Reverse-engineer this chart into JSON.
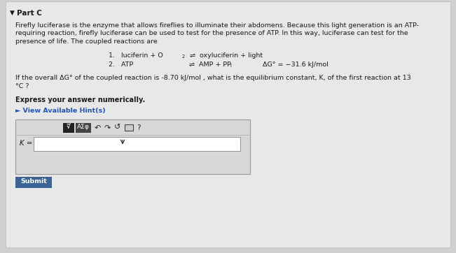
{
  "background_color": "#d0d0d0",
  "panel_color": "#e8e8e8",
  "part_label": "Part C",
  "body_text_line1": "Firefly luciferase is the enzyme that allows fireflies to illuminate their abdomens. Because this light generation is an ATP-",
  "body_text_line2": "requiring reaction, firefly luciferase can be used to test for the presence of ATP. In this way, luciferase can test for the",
  "body_text_line3": "presence of life. The coupled reactions are",
  "question_line1": "If the overall ΔG° of the coupled reaction is -8.70 kJ/mol , what is the equilibrium constant, K, of the first reaction at 13",
  "question_line2": "°C ?",
  "express_text": "Express your answer numerically.",
  "hint_text": "► View Available Hint(s)",
  "k_label": "K =",
  "submit_text": "Submit",
  "submit_bg": "#3a6496",
  "toolbar_bg": "#666666",
  "panel_border": "#bbbbbb",
  "input_border": "#aaaaaa",
  "font_color_dark": "#1a1a1a",
  "font_color_body": "#1a1a1a",
  "hint_color": "#2255bb",
  "body_fs": 6.8,
  "lh": 11.5
}
